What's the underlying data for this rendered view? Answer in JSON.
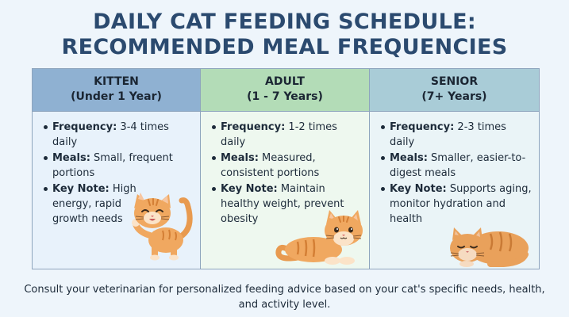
{
  "title_line1": "DAILY CAT FEEDING SCHEDULE:",
  "title_line2": "RECOMMENDED MEAL FREQUENCIES",
  "columns": [
    {
      "name": "KITTEN",
      "age": "(Under 1 Year)",
      "color": "#8fb1d2",
      "items": [
        {
          "label": "Frequency:",
          "text": " 3-4 times daily"
        },
        {
          "label": "Meals:",
          "text": " Small, frequent portions"
        },
        {
          "label": "Key Note:",
          "text": " High energy, rapid growth needs"
        }
      ],
      "icon": "playful-kitten-icon"
    },
    {
      "name": "ADULT",
      "age": "(1 - 7 Years)",
      "color": "#b3dcb7",
      "items": [
        {
          "label": "Frequency:",
          "text": " 1-2 times daily"
        },
        {
          "label": "Meals:",
          "text": " Measured, consistent portions"
        },
        {
          "label": "Key Note:",
          "text": " Maintain healthy weight, prevent obesity"
        }
      ],
      "icon": "resting-adult-cat-icon"
    },
    {
      "name": "SENIOR",
      "age": "(7+ Years)",
      "color": "#a9ccd7",
      "items": [
        {
          "label": "Frequency:",
          "text": " 2-3 times daily"
        },
        {
          "label": "Meals:",
          "text": " Smaller, easier-to-digest meals"
        },
        {
          "label": "Key Note:",
          "text": " Supports aging, monitor hydration and health"
        }
      ],
      "icon": "sleeping-senior-cat-icon"
    }
  ],
  "footer": "Consult your veterinarian for personalized feeding advice based on your cat's specific needs, health, and activity level."
}
